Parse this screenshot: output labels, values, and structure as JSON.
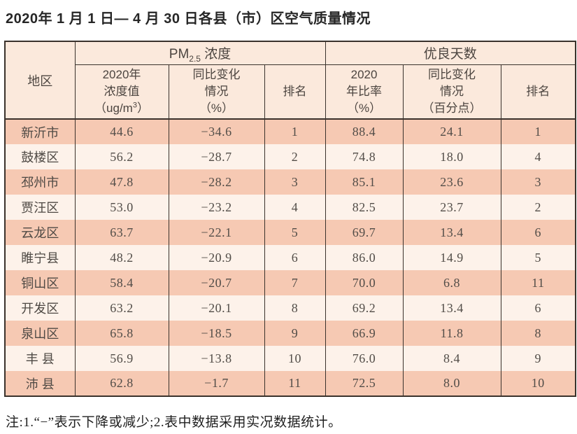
{
  "title": "2020年 1 月 1 日— 4 月 30 日各县（市）区空气质量情况",
  "table": {
    "header": {
      "region_label": "地区",
      "pm_group": {
        "base": "PM",
        "subscript": "2.5",
        "rest": " 浓度"
      },
      "good_group": "优良天数",
      "pm_value_col": {
        "line1": "2020年",
        "line2": "浓度值",
        "unit_prefix": "（ug/m",
        "unit_sup": "3",
        "unit_suffix": "）"
      },
      "pm_change_col": {
        "line1": "同比变化",
        "line2": "情况",
        "line3": "（%）"
      },
      "pm_rank_col": "排名",
      "good_ratio_col": {
        "line1": "2020",
        "line2": "年比率",
        "line3": "（%）"
      },
      "good_change_col": {
        "line1": "同比变化",
        "line2": "情况",
        "line3": "（百分点）"
      },
      "good_rank_col": "排名"
    },
    "rows": [
      {
        "region": "新沂市",
        "pm_value": "44.6",
        "pm_change": "−34.6",
        "pm_rank": "1",
        "good_ratio": "88.4",
        "good_change": "24.1",
        "good_rank": "1"
      },
      {
        "region": "鼓楼区",
        "pm_value": "56.2",
        "pm_change": "−28.7",
        "pm_rank": "2",
        "good_ratio": "74.8",
        "good_change": "18.0",
        "good_rank": "4"
      },
      {
        "region": "邳州市",
        "pm_value": "47.8",
        "pm_change": "−28.2",
        "pm_rank": "3",
        "good_ratio": "85.1",
        "good_change": "23.6",
        "good_rank": "3"
      },
      {
        "region": "贾汪区",
        "pm_value": "53.0",
        "pm_change": "−23.2",
        "pm_rank": "4",
        "good_ratio": "82.5",
        "good_change": "23.7",
        "good_rank": "2"
      },
      {
        "region": "云龙区",
        "pm_value": "63.7",
        "pm_change": "−22.1",
        "pm_rank": "5",
        "good_ratio": "69.7",
        "good_change": "13.4",
        "good_rank": "6"
      },
      {
        "region": "睢宁县",
        "pm_value": "48.2",
        "pm_change": "−20.9",
        "pm_rank": "6",
        "good_ratio": "86.0",
        "good_change": "14.9",
        "good_rank": "5"
      },
      {
        "region": "铜山区",
        "pm_value": "58.4",
        "pm_change": "−20.7",
        "pm_rank": "7",
        "good_ratio": "70.0",
        "good_change": "6.8",
        "good_rank": "11"
      },
      {
        "region": "开发区",
        "pm_value": "63.2",
        "pm_change": "−20.1",
        "pm_rank": "8",
        "good_ratio": "69.2",
        "good_change": "13.4",
        "good_rank": "6"
      },
      {
        "region": "泉山区",
        "pm_value": "65.8",
        "pm_change": "−18.5",
        "pm_rank": "9",
        "good_ratio": "66.9",
        "good_change": "11.8",
        "good_rank": "8"
      },
      {
        "region": "丰 县",
        "pm_value": "56.9",
        "pm_change": "−13.8",
        "pm_rank": "10",
        "good_ratio": "76.0",
        "good_change": "8.4",
        "good_rank": "9"
      },
      {
        "region": "沛 县",
        "pm_value": "62.8",
        "pm_change": "−1.7",
        "pm_rank": "11",
        "good_ratio": "72.5",
        "good_change": "8.0",
        "good_rank": "10"
      }
    ]
  },
  "note": "注:1.“−”表示下降或减少;2.表中数据采用实况数据统计。",
  "colors": {
    "row_salmon": "#f6c9b3",
    "row_light": "#fdf2ea",
    "header_bg": "#fbe9dc",
    "border": "#3a322c",
    "text": "#4e4944"
  }
}
